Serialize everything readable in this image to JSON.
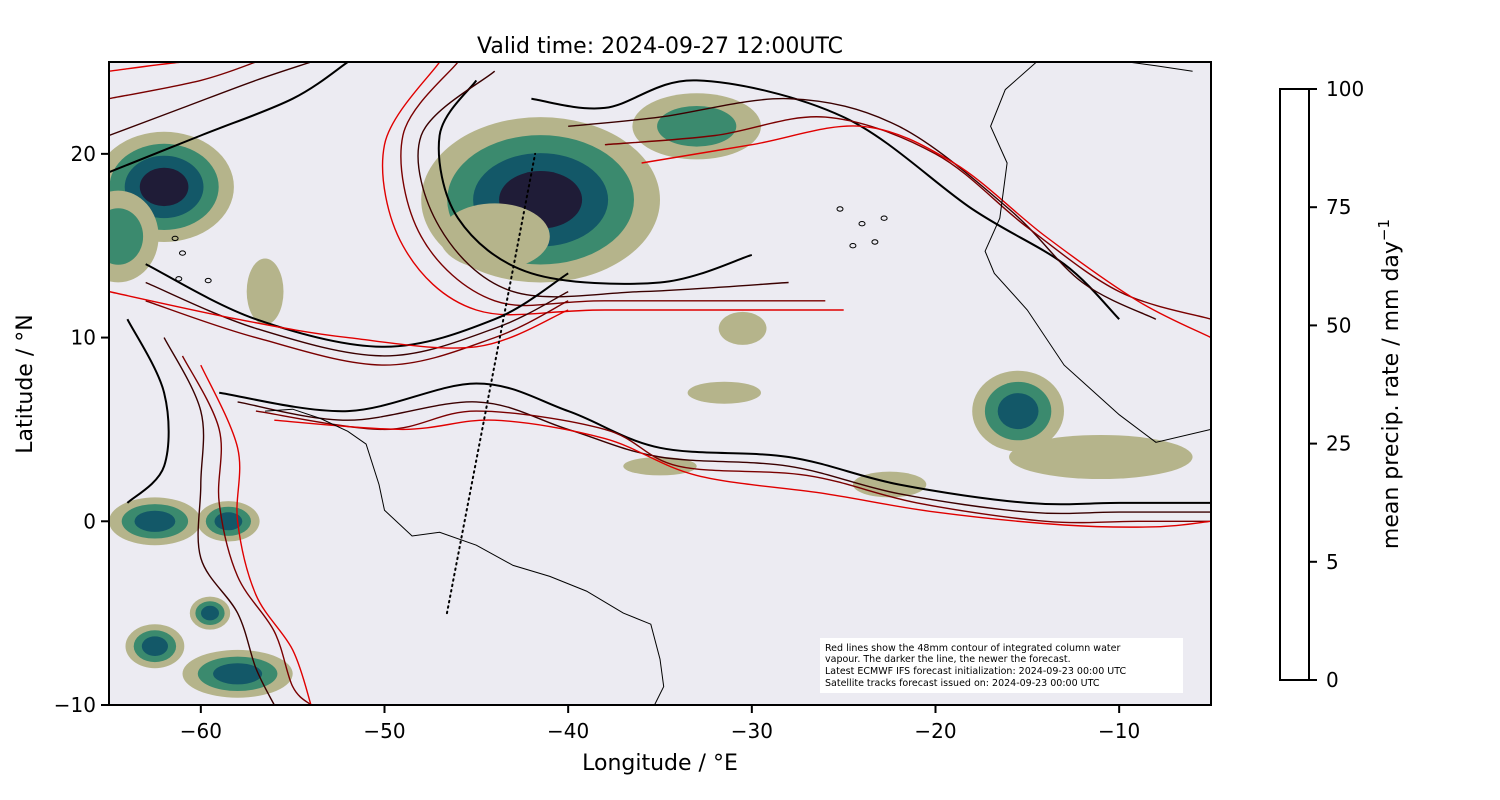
{
  "title": "Valid time: 2024-09-27 12:00UTC",
  "chart_data": {
    "type": "map",
    "title": "Valid time: 2024-09-27 12:00UTC",
    "xlabel": "Longitude / °E",
    "ylabel": "Latitude / °N",
    "xlim": [
      -65,
      -5
    ],
    "ylim": [
      -10,
      25
    ],
    "xticks": [
      -60,
      -50,
      -40,
      -30,
      -20,
      -10
    ],
    "yticks": [
      -10,
      0,
      10,
      20
    ],
    "xtick_labels": [
      "−60",
      "−50",
      "−40",
      "−30",
      "−20",
      "−10"
    ],
    "ytick_labels": [
      "−10",
      "0",
      "10",
      "20"
    ],
    "colorbar": {
      "label": "mean precip. rate / mm day",
      "label_superscript": "−1",
      "levels": [
        0,
        5,
        25,
        50,
        75,
        100
      ],
      "level_labels": [
        "0",
        "5",
        "25",
        "50",
        "75",
        "100"
      ],
      "colors": [
        "#ecebf2",
        "#b5b48b",
        "#3b8a6e",
        "#135868",
        "#1f1c37"
      ]
    },
    "annotation_lines": [
      "Red lines show the 48mm contour of integrated column water",
      "vapour. The darker the line, the newer the forecast.",
      "Latest ECMWF IFS forecast initialization: 2024-09-23 00:00 UTC",
      "Satellite tracks forecast issued on: 2024-09-23 00:00 UTC"
    ],
    "satellite_track": [
      [
        -46.6,
        -5.0
      ],
      [
        -41.8,
        20.0
      ]
    ],
    "precip_blobs": [
      {
        "lon": -62,
        "lat": 18.2,
        "rx": 3.8,
        "ry": 3.0,
        "level": 4
      },
      {
        "lon": -64.5,
        "lat": 15.5,
        "rx": 2.2,
        "ry": 2.5,
        "level": 2
      },
      {
        "lon": -41.5,
        "lat": 17.5,
        "rx": 6.5,
        "ry": 4.5,
        "level": 4
      },
      {
        "lon": -44,
        "lat": 15.5,
        "rx": 3.0,
        "ry": 1.8,
        "level": 1
      },
      {
        "lon": -33,
        "lat": 21.5,
        "rx": 3.5,
        "ry": 1.8,
        "level": 2
      },
      {
        "lon": -56.5,
        "lat": 12.5,
        "rx": 1.0,
        "ry": 1.8,
        "level": 1
      },
      {
        "lon": -30.5,
        "lat": 10.5,
        "rx": 1.3,
        "ry": 0.9,
        "level": 1
      },
      {
        "lon": -15.5,
        "lat": 6.0,
        "rx": 2.5,
        "ry": 2.2,
        "level": 3
      },
      {
        "lon": -11,
        "lat": 3.5,
        "rx": 5.0,
        "ry": 1.2,
        "level": 1
      },
      {
        "lon": -62.5,
        "lat": 0.0,
        "rx": 2.5,
        "ry": 1.3,
        "level": 3
      },
      {
        "lon": -58.5,
        "lat": 0.0,
        "rx": 1.7,
        "ry": 1.1,
        "level": 3
      },
      {
        "lon": -59.5,
        "lat": -5.0,
        "rx": 1.1,
        "ry": 0.9,
        "level": 3
      },
      {
        "lon": -62.5,
        "lat": -6.8,
        "rx": 1.6,
        "ry": 1.2,
        "level": 3
      },
      {
        "lon": -58.0,
        "lat": -8.3,
        "rx": 3.0,
        "ry": 1.3,
        "level": 3
      },
      {
        "lon": -35.0,
        "lat": 3.0,
        "rx": 2.0,
        "ry": 0.5,
        "level": 1
      },
      {
        "lon": -22.5,
        "lat": 2.0,
        "rx": 2.0,
        "ry": 0.7,
        "level": 1
      },
      {
        "lon": -31.5,
        "lat": 7.0,
        "rx": 2.0,
        "ry": 0.6,
        "level": 1
      }
    ],
    "moisture_contours": [
      {
        "shade": "#000000",
        "points": [
          [
            -65,
            19
          ],
          [
            -60,
            21
          ],
          [
            -55,
            23
          ],
          [
            -52,
            25
          ]
        ]
      },
      {
        "shade": "#3a0000",
        "points": [
          [
            -65,
            21
          ],
          [
            -61,
            22.5
          ],
          [
            -57,
            24
          ],
          [
            -54,
            25
          ]
        ]
      },
      {
        "shade": "#7a0000",
        "points": [
          [
            -65,
            23
          ],
          [
            -60,
            24
          ],
          [
            -57,
            25
          ]
        ]
      },
      {
        "shade": "#e00000",
        "points": [
          [
            -65,
            24.5
          ],
          [
            -61,
            25
          ],
          [
            -59,
            25
          ]
        ]
      },
      {
        "shade": "#000000",
        "points": [
          [
            -45,
            24
          ],
          [
            -47,
            21
          ],
          [
            -46,
            16.5
          ],
          [
            -42,
            13.5
          ],
          [
            -35,
            13
          ],
          [
            -30,
            14.5
          ]
        ]
      },
      {
        "shade": "#3a0000",
        "points": [
          [
            -44,
            24.5
          ],
          [
            -48,
            21
          ],
          [
            -47,
            16
          ],
          [
            -43,
            12.5
          ],
          [
            -36,
            12.5
          ],
          [
            -28,
            13
          ]
        ]
      },
      {
        "shade": "#7a0000",
        "points": [
          [
            -46,
            25
          ],
          [
            -49,
            21
          ],
          [
            -48,
            15.5
          ],
          [
            -44,
            12
          ],
          [
            -38,
            12
          ],
          [
            -26,
            12
          ]
        ]
      },
      {
        "shade": "#e00000",
        "points": [
          [
            -47,
            25
          ],
          [
            -50,
            20.5
          ],
          [
            -49,
            15
          ],
          [
            -45,
            11.5
          ],
          [
            -38,
            11.5
          ],
          [
            -25,
            11.5
          ]
        ]
      },
      {
        "shade": "#000000",
        "points": [
          [
            -42,
            23
          ],
          [
            -38,
            22.5
          ],
          [
            -33,
            24
          ],
          [
            -25,
            22
          ],
          [
            -18,
            17
          ],
          [
            -13,
            14
          ],
          [
            -10,
            11
          ]
        ]
      },
      {
        "shade": "#3a0000",
        "points": [
          [
            -40,
            21.5
          ],
          [
            -35,
            22
          ],
          [
            -28,
            23
          ],
          [
            -22,
            21.5
          ],
          [
            -16,
            17
          ],
          [
            -12,
            13
          ],
          [
            -8,
            11
          ]
        ]
      },
      {
        "shade": "#7a0000",
        "points": [
          [
            -38,
            20.5
          ],
          [
            -32,
            21
          ],
          [
            -26,
            22
          ],
          [
            -20,
            20
          ],
          [
            -15,
            16
          ],
          [
            -10,
            12.5
          ],
          [
            -5,
            11
          ]
        ]
      },
      {
        "shade": "#e00000",
        "points": [
          [
            -36,
            19.5
          ],
          [
            -30,
            20.5
          ],
          [
            -24,
            21.5
          ],
          [
            -19,
            19.5
          ],
          [
            -14,
            15.5
          ],
          [
            -9,
            12
          ],
          [
            -5,
            10
          ]
        ]
      },
      {
        "shade": "#000000",
        "points": [
          [
            -63,
            14
          ],
          [
            -57,
            11
          ],
          [
            -50,
            9.5
          ],
          [
            -44,
            11
          ],
          [
            -40,
            13.5
          ]
        ]
      },
      {
        "shade": "#3a0000",
        "points": [
          [
            -63,
            13
          ],
          [
            -57,
            10.5
          ],
          [
            -50,
            9
          ],
          [
            -44,
            10.5
          ],
          [
            -40,
            12.5
          ]
        ]
      },
      {
        "shade": "#7a0000",
        "points": [
          [
            -63,
            12
          ],
          [
            -57,
            10
          ],
          [
            -50,
            8.5
          ],
          [
            -44,
            10
          ],
          [
            -40,
            12
          ]
        ]
      },
      {
        "shade": "#e00000",
        "points": [
          [
            -65,
            12.5
          ],
          [
            -58,
            11
          ],
          [
            -52,
            10
          ],
          [
            -45,
            9.5
          ],
          [
            -40,
            11.5
          ]
        ]
      },
      {
        "shade": "#000000",
        "points": [
          [
            -59,
            7
          ],
          [
            -52,
            6
          ],
          [
            -45,
            7.5
          ],
          [
            -40,
            6
          ],
          [
            -35,
            4
          ],
          [
            -28,
            3.5
          ],
          [
            -22,
            2
          ],
          [
            -15,
            1
          ],
          [
            -10,
            1
          ],
          [
            -5,
            1
          ]
        ]
      },
      {
        "shade": "#3a0000",
        "points": [
          [
            -58,
            6.5
          ],
          [
            -52,
            5.5
          ],
          [
            -45,
            6.5
          ],
          [
            -40,
            5
          ],
          [
            -35,
            3.5
          ],
          [
            -28,
            3
          ],
          [
            -22,
            1.5
          ],
          [
            -15,
            0.5
          ],
          [
            -10,
            0.5
          ],
          [
            -5,
            0.5
          ]
        ]
      },
      {
        "shade": "#7a0000",
        "points": [
          [
            -57,
            6
          ],
          [
            -50,
            5
          ],
          [
            -45,
            6
          ],
          [
            -38,
            5
          ],
          [
            -34,
            3
          ],
          [
            -27,
            2.5
          ],
          [
            -21,
            1
          ],
          [
            -14,
            0
          ],
          [
            -9,
            0
          ],
          [
            -5,
            0
          ]
        ]
      },
      {
        "shade": "#e00000",
        "points": [
          [
            -56,
            5.5
          ],
          [
            -49,
            5
          ],
          [
            -44,
            5.5
          ],
          [
            -38,
            4.5
          ],
          [
            -33,
            2.5
          ],
          [
            -26,
            1.5
          ],
          [
            -20,
            0.5
          ],
          [
            -13,
            -0.2
          ],
          [
            -8,
            -0.3
          ],
          [
            -5,
            0
          ]
        ]
      },
      {
        "shade": "#000000",
        "points": [
          [
            -64,
            11
          ],
          [
            -62,
            7
          ],
          [
            -62,
            3
          ],
          [
            -64,
            1
          ]
        ]
      },
      {
        "shade": "#3a0000",
        "points": [
          [
            -62,
            10
          ],
          [
            -60,
            6
          ],
          [
            -60,
            2
          ],
          [
            -60,
            -2
          ],
          [
            -58,
            -5
          ],
          [
            -57,
            -8
          ],
          [
            -56,
            -10
          ]
        ]
      },
      {
        "shade": "#7a0000",
        "points": [
          [
            -61,
            9
          ],
          [
            -59,
            5
          ],
          [
            -59,
            1
          ],
          [
            -58,
            -3
          ],
          [
            -56,
            -6
          ],
          [
            -55,
            -9
          ],
          [
            -54,
            -10
          ]
        ]
      },
      {
        "shade": "#e00000",
        "points": [
          [
            -60,
            8.5
          ],
          [
            -58,
            4
          ],
          [
            -58,
            0
          ],
          [
            -57,
            -4
          ],
          [
            -55,
            -7
          ],
          [
            -54,
            -10
          ]
        ]
      }
    ],
    "coastlines": [
      [
        [
          -56.5,
          6.0
        ],
        [
          -55,
          6.1
        ],
        [
          -53.5,
          5.6
        ],
        [
          -52,
          4.9
        ],
        [
          -51,
          4.2
        ],
        [
          -50.3,
          2.0
        ],
        [
          -50.0,
          0.6
        ],
        [
          -48.5,
          -0.8
        ],
        [
          -47,
          -0.6
        ],
        [
          -45,
          -1.3
        ],
        [
          -43,
          -2.4
        ],
        [
          -41,
          -3.0
        ],
        [
          -39,
          -3.8
        ],
        [
          -37,
          -5.0
        ],
        [
          -35.5,
          -5.6
        ],
        [
          -35.0,
          -7.5
        ],
        [
          -34.8,
          -9.0
        ],
        [
          -35.3,
          -10.0
        ]
      ],
      [
        [
          -5,
          5.0
        ],
        [
          -8,
          4.3
        ],
        [
          -10,
          5.8
        ],
        [
          -13,
          8.5
        ],
        [
          -15,
          11.5
        ],
        [
          -16.8,
          13.5
        ],
        [
          -17.3,
          14.7
        ],
        [
          -16.5,
          16.5
        ],
        [
          -16.1,
          19.5
        ],
        [
          -17,
          21.5
        ],
        [
          -16.2,
          23.5
        ],
        [
          -14.5,
          25.0
        ]
      ],
      [
        [
          -6,
          24.5
        ],
        [
          -8,
          24.8
        ],
        [
          -9.5,
          25.0
        ]
      ]
    ],
    "islands": [
      {
        "lon": -24,
        "lat": 16.2
      },
      {
        "lon": -23.3,
        "lat": 15.2
      },
      {
        "lon": -24.5,
        "lat": 15.0
      },
      {
        "lon": -22.8,
        "lat": 16.5
      },
      {
        "lon": -25.2,
        "lat": 17.0
      },
      {
        "lon": -61.4,
        "lat": 15.4
      },
      {
        "lon": -61.0,
        "lat": 14.6
      },
      {
        "lon": -61.2,
        "lat": 13.2
      },
      {
        "lon": -59.6,
        "lat": 13.1
      }
    ]
  }
}
